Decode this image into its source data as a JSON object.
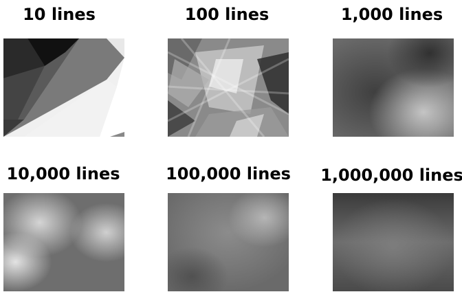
{
  "panels": [
    {
      "label": "10 lines",
      "lines": 10
    },
    {
      "label": "100 lines",
      "lines": 100
    },
    {
      "label": "1,000 lines",
      "lines": 1000
    },
    {
      "label": "10,000 lines",
      "lines": 10000
    },
    {
      "label": "100,000 lines",
      "lines": 100000
    },
    {
      "label": "1,000,000 lines",
      "lines": 1000000
    }
  ]
}
